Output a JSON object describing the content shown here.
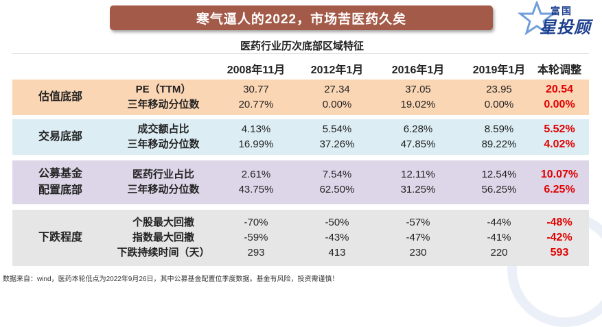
{
  "title": "寒气逼人的2022，市场苦医药久矣",
  "logo": {
    "brand_top": "富国",
    "brand_main": "星投顾"
  },
  "table": {
    "caption": "医药行业历次底部区域特征",
    "columns": [
      "2008年11月",
      "2012年1月",
      "2016年1月",
      "2019年1月",
      "本轮调整"
    ],
    "bands": [
      {
        "label": "估值底部",
        "bg": "#fbd6b4",
        "rows": [
          {
            "metric": "PE（TTM）",
            "values": [
              "30.77",
              "27.34",
              "37.05",
              "23.95",
              "20.54"
            ]
          },
          {
            "metric": "三年移动分位数",
            "values": [
              "20.77%",
              "0.00%",
              "19.02%",
              "0.00%",
              "0.00%"
            ]
          }
        ]
      },
      {
        "label": "交易底部",
        "bg": "#dcedf4",
        "rows": [
          {
            "metric": "成交额占比",
            "values": [
              "4.13%",
              "5.54%",
              "6.28%",
              "8.59%",
              "5.52%"
            ]
          },
          {
            "metric": "三年移动分位数",
            "values": [
              "16.99%",
              "37.26%",
              "47.85%",
              "89.22%",
              "4.02%"
            ]
          }
        ]
      },
      {
        "label": "公募基金\n配置底部",
        "bg": "#ddd6e9",
        "rows": [
          {
            "metric": "医药行业占比",
            "values": [
              "2.61%",
              "7.54%",
              "12.11%",
              "12.54%",
              "10.07%"
            ]
          },
          {
            "metric": "三年移动分位数",
            "values": [
              "43.75%",
              "62.50%",
              "31.25%",
              "56.25%",
              "6.25%"
            ]
          }
        ]
      },
      {
        "label": "下跌程度",
        "bg": "#e6e6e6",
        "rows": [
          {
            "metric": "个股最大回撤",
            "values": [
              "-70%",
              "-50%",
              "-57%",
              "-44%",
              "-48%"
            ]
          },
          {
            "metric": "指数最大回撤",
            "values": [
              "-59%",
              "-43%",
              "-47%",
              "-41%",
              "-42%"
            ]
          },
          {
            "metric": "下跌持续时间（天）",
            "values": [
              "293",
              "413",
              "230",
              "220",
              "593"
            ]
          }
        ]
      }
    ]
  },
  "footnote": "数据来自：wind，医药本轮低点为2022年9月26日，其中公募基金配置位季度数据。基金有风险，投资需谨慎！",
  "colors": {
    "title_bg": "#a35a48",
    "highlight": "#e00000",
    "brand": "#1c3f8f"
  }
}
